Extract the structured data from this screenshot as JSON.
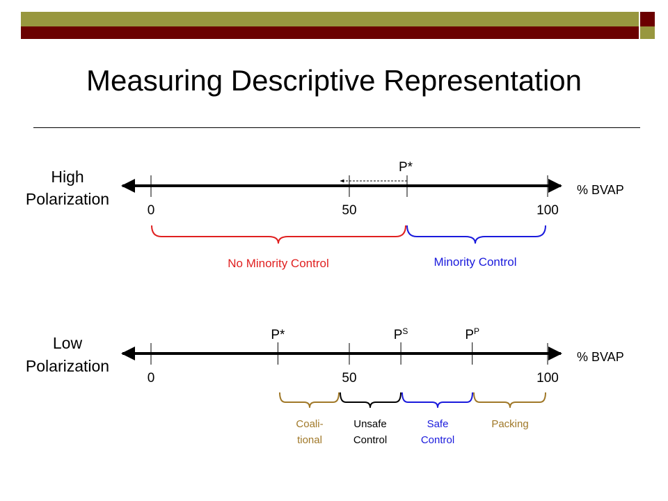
{
  "title": "Measuring Descriptive Representation",
  "colors": {
    "olive": "#98973f",
    "maroon": "#6b0000",
    "red": "#e02020",
    "blue": "#1a1adc",
    "gold": "#a07828",
    "black": "#000000"
  },
  "high": {
    "label_line1": "High",
    "label_line2": "Polarization",
    "axis_unit": "% BVAP",
    "ticks": [
      {
        "value": 0,
        "label": "0"
      },
      {
        "value": 50,
        "label": "50"
      },
      {
        "value": 100,
        "label": "100"
      }
    ],
    "p_star": {
      "label": "P*",
      "value": 64
    },
    "ranges": [
      {
        "label": "No Minority Control",
        "color": "red"
      },
      {
        "label": "Minority Control",
        "color": "blue"
      }
    ]
  },
  "low": {
    "label_line1": "Low",
    "label_line2": "Polarization",
    "axis_unit": "% BVAP",
    "ticks": [
      {
        "value": 0,
        "label": "0"
      },
      {
        "value": 50,
        "label": "50"
      },
      {
        "value": 100,
        "label": "100"
      }
    ],
    "markers": [
      {
        "base": "P",
        "sup": "*",
        "value": 32
      },
      {
        "base": "P",
        "sup": "S",
        "value": 63
      },
      {
        "base": "P",
        "sup": "P",
        "value": 81
      }
    ],
    "ranges": [
      {
        "line1": "Coali-",
        "line2": "tional",
        "color": "gold"
      },
      {
        "line1": "Unsafe",
        "line2": "Control",
        "color": "black"
      },
      {
        "line1": "Safe",
        "line2": "Control",
        "color": "blue"
      },
      {
        "line1": "Packing",
        "line2": "",
        "color": "gold"
      }
    ]
  }
}
